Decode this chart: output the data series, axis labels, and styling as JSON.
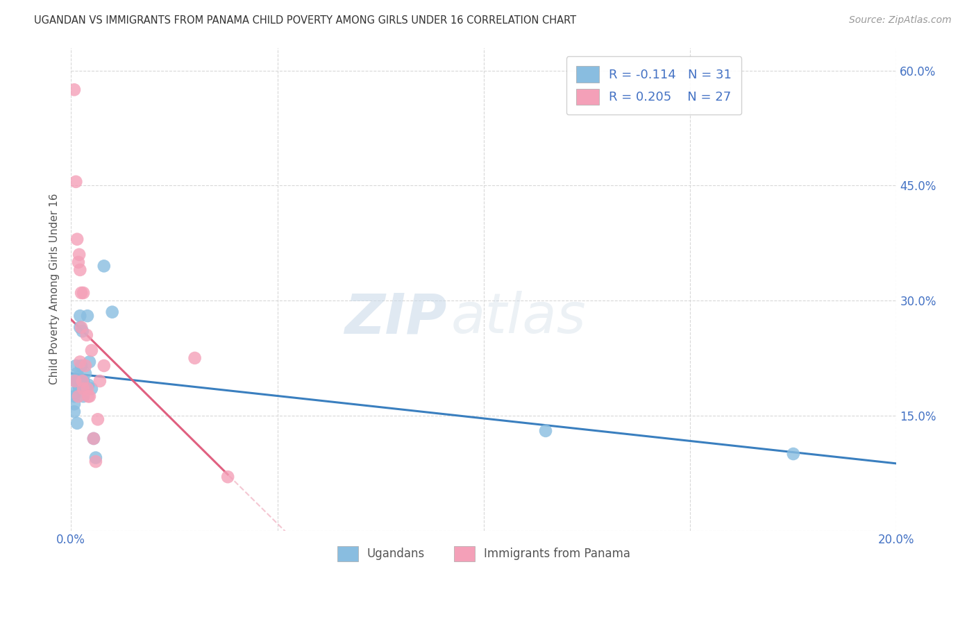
{
  "title": "UGANDAN VS IMMIGRANTS FROM PANAMA CHILD POVERTY AMONG GIRLS UNDER 16 CORRELATION CHART",
  "source": "Source: ZipAtlas.com",
  "ylabel": "Child Poverty Among Girls Under 16",
  "legend_label_1": "Ugandans",
  "legend_label_2": "Immigrants from Panama",
  "R1": -0.114,
  "N1": 31,
  "R2": 0.205,
  "N2": 27,
  "color1": "#89bde0",
  "color2": "#f4a0b8",
  "line_color1": "#3a7fbf",
  "line_color2": "#e06080",
  "dash_color": "#f0b0c0",
  "xmin": 0.0,
  "xmax": 0.2,
  "ymin": 0.0,
  "ymax": 0.63,
  "xtick_positions": [
    0.0,
    0.05,
    0.1,
    0.15,
    0.2
  ],
  "xtick_labels": [
    "0.0%",
    "",
    "",
    "",
    "20.0%"
  ],
  "ytick_positions": [
    0.0,
    0.15,
    0.3,
    0.45,
    0.6
  ],
  "ytick_labels_right": [
    "",
    "15.0%",
    "30.0%",
    "45.0%",
    "60.0%"
  ],
  "ugandan_x": [
    0.0008,
    0.0008,
    0.0008,
    0.001,
    0.001,
    0.0012,
    0.0015,
    0.0015,
    0.0015,
    0.0018,
    0.0018,
    0.002,
    0.002,
    0.0022,
    0.0022,
    0.0025,
    0.0025,
    0.0028,
    0.003,
    0.003,
    0.0035,
    0.004,
    0.0042,
    0.0045,
    0.005,
    0.0055,
    0.006,
    0.008,
    0.01,
    0.115,
    0.175
  ],
  "ugandan_y": [
    0.175,
    0.165,
    0.155,
    0.195,
    0.18,
    0.215,
    0.205,
    0.195,
    0.14,
    0.2,
    0.19,
    0.195,
    0.185,
    0.28,
    0.265,
    0.215,
    0.195,
    0.26,
    0.195,
    0.175,
    0.205,
    0.28,
    0.19,
    0.22,
    0.185,
    0.12,
    0.095,
    0.345,
    0.285,
    0.13,
    0.1
  ],
  "panama_x": [
    0.0008,
    0.001,
    0.0012,
    0.0015,
    0.0018,
    0.0018,
    0.002,
    0.0022,
    0.0022,
    0.0025,
    0.0025,
    0.0028,
    0.003,
    0.003,
    0.0035,
    0.0038,
    0.004,
    0.0042,
    0.0045,
    0.005,
    0.0055,
    0.006,
    0.0065,
    0.007,
    0.008,
    0.03,
    0.038
  ],
  "panama_y": [
    0.575,
    0.195,
    0.455,
    0.38,
    0.35,
    0.175,
    0.36,
    0.34,
    0.22,
    0.31,
    0.265,
    0.195,
    0.31,
    0.185,
    0.215,
    0.255,
    0.185,
    0.175,
    0.175,
    0.235,
    0.12,
    0.09,
    0.145,
    0.195,
    0.215,
    0.225,
    0.07
  ],
  "watermark_zip": "ZIP",
  "watermark_atlas": "atlas",
  "background_color": "#ffffff",
  "grid_color": "#d8d8d8"
}
